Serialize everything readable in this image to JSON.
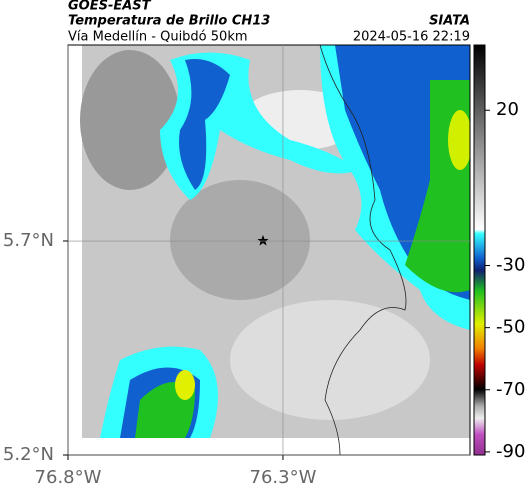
{
  "header": {
    "title": "GOES-EAST",
    "subtitle": "Temperatura de Brillo CH13",
    "region": "Vía Medellín - Quibdó 50km",
    "source": "SIATA",
    "datetime": "2024-05-16 22:19"
  },
  "map": {
    "xlim": [
      -76.8,
      -75.865
    ],
    "ylim": [
      5.2,
      6.158
    ],
    "xticks": [
      {
        "value": -76.8,
        "label": "76.8°W"
      },
      {
        "value": -76.3,
        "label": "76.3°W"
      }
    ],
    "yticks": [
      {
        "value": 5.7,
        "label": "5.7°N"
      },
      {
        "value": 5.2,
        "label": "5.2°N"
      }
    ],
    "grid": true
  },
  "colorbar": {
    "clim": [
      -91,
      41
    ],
    "ticks": [
      20,
      -30,
      -50,
      -70,
      -90
    ]
  }
}
